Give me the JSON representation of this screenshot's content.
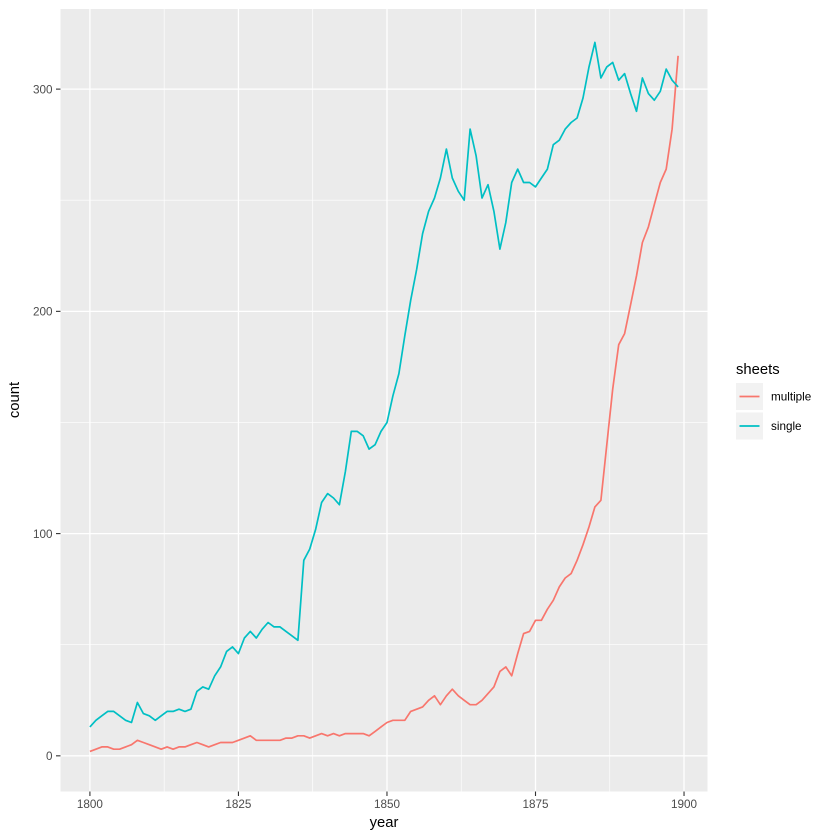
{
  "figure": {
    "kind": "ggplot2-style line chart",
    "background": "#FFFFFF"
  },
  "chart_data": {
    "type": "line",
    "title": "",
    "xlabel": "year",
    "ylabel": "count",
    "legend": {
      "title": "sheets",
      "position": "right",
      "entries": [
        "multiple",
        "single"
      ],
      "key_fill": "#F2F2F2"
    },
    "panel_bg": "#EBEBEB",
    "grid_color": "#FFFFFF",
    "axis_text_color": "#4D4D4D",
    "tick_mark_color": "#333333",
    "grid": true,
    "x_axis": {
      "ticks": [
        1800,
        1825,
        1850,
        1875,
        1900
      ],
      "minor_gridlines": [
        1812.5,
        1837.5,
        1862.5,
        1887.5
      ],
      "range": [
        1795.05,
        1903.95
      ]
    },
    "y_axis": {
      "ticks": [
        0,
        100,
        200,
        300
      ],
      "minor_gridlines": [
        50,
        150,
        250
      ],
      "range": [
        -16.05,
        336.05
      ]
    },
    "years": [
      1800,
      1801,
      1802,
      1803,
      1804,
      1805,
      1806,
      1807,
      1808,
      1809,
      1810,
      1811,
      1812,
      1813,
      1814,
      1815,
      1816,
      1817,
      1818,
      1819,
      1820,
      1821,
      1822,
      1823,
      1824,
      1825,
      1826,
      1827,
      1828,
      1829,
      1830,
      1831,
      1832,
      1833,
      1834,
      1835,
      1836,
      1837,
      1838,
      1839,
      1840,
      1841,
      1842,
      1843,
      1844,
      1845,
      1846,
      1847,
      1848,
      1849,
      1850,
      1851,
      1852,
      1853,
      1854,
      1855,
      1856,
      1857,
      1858,
      1859,
      1860,
      1861,
      1862,
      1863,
      1864,
      1865,
      1866,
      1867,
      1868,
      1869,
      1870,
      1871,
      1872,
      1873,
      1874,
      1875,
      1876,
      1877,
      1878,
      1879,
      1880,
      1881,
      1882,
      1883,
      1884,
      1885,
      1886,
      1887,
      1888,
      1889,
      1890,
      1891,
      1892,
      1893,
      1894,
      1895,
      1896,
      1897,
      1898,
      1899
    ],
    "series": [
      {
        "name": "multiple",
        "color": "#F8766D",
        "values": [
          2,
          3,
          4,
          4,
          3,
          3,
          4,
          5,
          7,
          6,
          5,
          4,
          3,
          4,
          3,
          4,
          4,
          5,
          6,
          5,
          4,
          5,
          6,
          6,
          6,
          7,
          8,
          9,
          7,
          7,
          7,
          7,
          7,
          8,
          8,
          9,
          9,
          8,
          9,
          10,
          9,
          10,
          9,
          10,
          10,
          10,
          10,
          9,
          11,
          13,
          15,
          16,
          16,
          16,
          20,
          21,
          22,
          25,
          27,
          23,
          27,
          30,
          27,
          25,
          23,
          23,
          25,
          28,
          31,
          38,
          40,
          36,
          46,
          55,
          56,
          61,
          61,
          66,
          70,
          76,
          80,
          82,
          88,
          95,
          103,
          112,
          115,
          140,
          165,
          185,
          190,
          203,
          216,
          231,
          238,
          248,
          258,
          264,
          282,
          315
        ]
      },
      {
        "name": "single",
        "color": "#00BFC4",
        "values": [
          13,
          16,
          18,
          20,
          20,
          18,
          16,
          15,
          24,
          19,
          18,
          16,
          18,
          20,
          20,
          21,
          20,
          21,
          29,
          31,
          30,
          36,
          40,
          47,
          49,
          46,
          53,
          56,
          53,
          57,
          60,
          58,
          58,
          56,
          54,
          52,
          88,
          93,
          102,
          114,
          118,
          116,
          113,
          128,
          146,
          146,
          144,
          138,
          140,
          146,
          150,
          162,
          172,
          189,
          205,
          219,
          235,
          245,
          251,
          260,
          273,
          260,
          254,
          250,
          282,
          270,
          251,
          257,
          245,
          228,
          240,
          258,
          264,
          258,
          258,
          256,
          260,
          264,
          275,
          277,
          282,
          285,
          287,
          296,
          310,
          321,
          305,
          310,
          312,
          304,
          307,
          298,
          290,
          305,
          298,
          295,
          299,
          309,
          304,
          301
        ]
      }
    ]
  }
}
